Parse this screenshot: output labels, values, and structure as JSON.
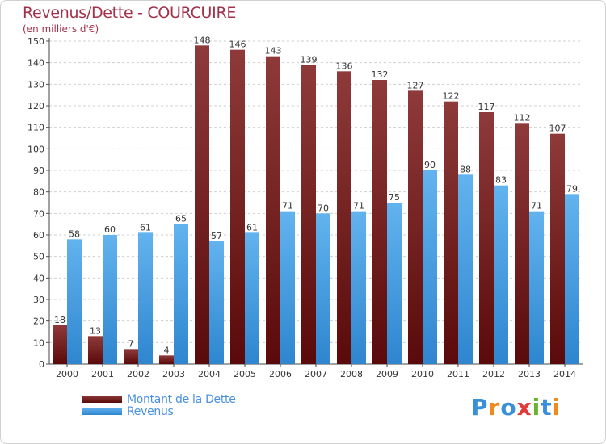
{
  "header": {
    "title": "Revenus/Dette - COURCUIRE",
    "subtitle": "(en milliers d'€)"
  },
  "legend": {
    "debt_label": "Montant de la Dette",
    "revenue_label": "Revenus"
  },
  "logo": {
    "text": "Proxiti",
    "colors": [
      "#3a8fd9",
      "#f08a1c",
      "#3a8fd9",
      "#e23b3b",
      "#6ab42d",
      "#3a8fd9",
      "#f08a1c"
    ]
  },
  "colors": {
    "debt_top": "#8e3a3a",
    "debt_bottom": "#5a0a0a",
    "revenue_top": "#62b3ee",
    "revenue_bottom": "#2f86cf",
    "axis_text": "#333333",
    "grid": "#cfcfcf"
  },
  "chart_data": {
    "type": "bar",
    "categories": [
      "2000",
      "2001",
      "2002",
      "2003",
      "2004",
      "2005",
      "2006",
      "2007",
      "2008",
      "2009",
      "2010",
      "2011",
      "2012",
      "2013",
      "2014"
    ],
    "series": [
      {
        "name": "Montant de la Dette",
        "values": [
          18,
          13,
          7,
          4,
          148,
          146,
          143,
          139,
          136,
          132,
          127,
          122,
          117,
          112,
          107
        ]
      },
      {
        "name": "Revenus",
        "values": [
          58,
          60,
          61,
          65,
          57,
          61,
          71,
          70,
          71,
          75,
          90,
          88,
          83,
          71,
          79
        ]
      }
    ],
    "ylim": [
      0,
      150
    ],
    "ytick_step": 10,
    "grid": true,
    "legend_position": "bottom-left"
  }
}
